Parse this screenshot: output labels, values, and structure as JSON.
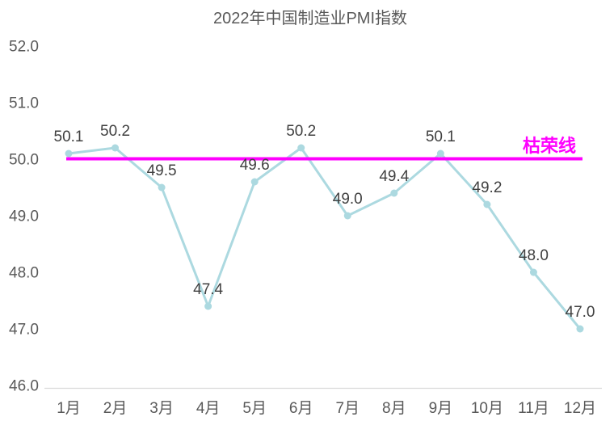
{
  "chart_data": {
    "type": "line",
    "title": "2022年中国制造业PMI指数",
    "categories": [
      "1月",
      "2月",
      "3月",
      "4月",
      "5月",
      "6月",
      "7月",
      "8月",
      "9月",
      "10月",
      "11月",
      "12月"
    ],
    "series": [
      {
        "values": [
          50.1,
          50.2,
          49.5,
          47.4,
          49.6,
          50.2,
          49.0,
          49.4,
          50.1,
          49.2,
          48.0,
          47.0
        ],
        "color": "#acd9e0",
        "marker": "circle",
        "data_labels": [
          "50.1",
          "50.2",
          "49.5",
          "47.4",
          "49.6",
          "50.2",
          "49.0",
          "49.4",
          "50.1",
          "49.2",
          "48.0",
          "47.0"
        ]
      }
    ],
    "reference_line": {
      "value": 50.0,
      "label": "枯荣线",
      "color": "#ff00ff"
    },
    "ylim": [
      46.0,
      52.0
    ],
    "ytick_step": 1.0,
    "ytick_labels": [
      "46.0",
      "47.0",
      "48.0",
      "49.0",
      "50.0",
      "51.0",
      "52.0"
    ],
    "xlabel": "",
    "ylabel": "",
    "grid": false,
    "legend_position": "none",
    "colors": {
      "title": "#595959",
      "axis_tick": "#595959",
      "data_label": "#404040",
      "axis_line": "#d9d9d9",
      "background": "#ffffff"
    }
  }
}
